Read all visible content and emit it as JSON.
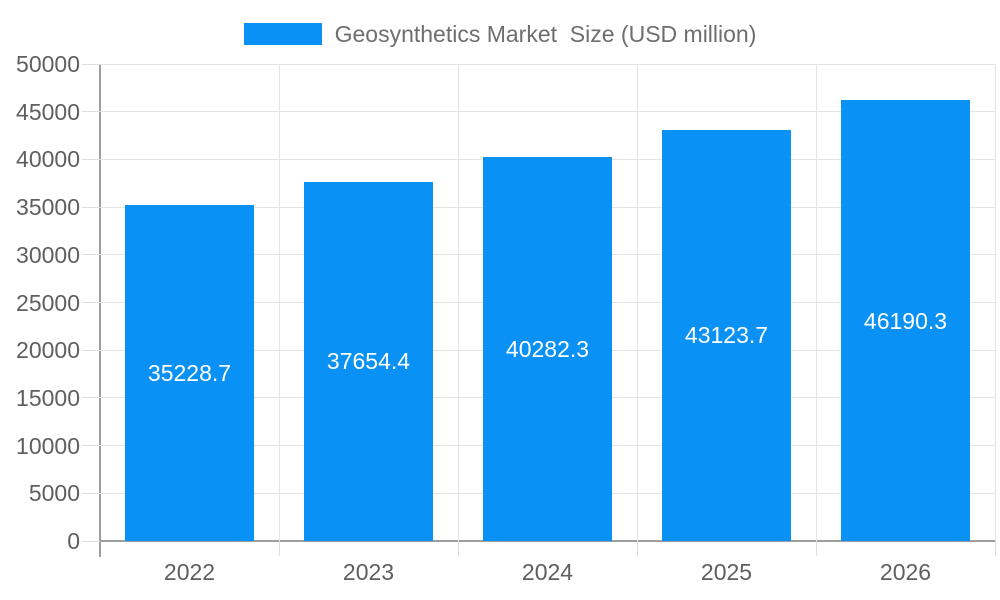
{
  "legend": {
    "label": "Geosynthetics Market  Size (USD million)"
  },
  "chart_data": {
    "type": "bar",
    "title": "Geosynthetics Market  Size (USD million)",
    "categories": [
      "2022",
      "2023",
      "2024",
      "2025",
      "2026"
    ],
    "values": [
      35228.7,
      37654.4,
      40282.3,
      43123.7,
      46190.3
    ],
    "value_labels": [
      "35228.7",
      "37654.4",
      "40282.3",
      "43123.7",
      "46190.3"
    ],
    "xlabel": "",
    "ylabel": "",
    "ylim": [
      0,
      50000
    ],
    "ytick_step": 5000,
    "yticks": [
      "0",
      "5000",
      "10000",
      "15000",
      "20000",
      "25000",
      "30000",
      "35000",
      "40000",
      "45000",
      "50000"
    ],
    "grid": true,
    "legend_position": "top-center",
    "value_label_position": "center-of-bar",
    "colors": {
      "bar": "#0991f5",
      "grid": "#e4e4e4",
      "axis": "#9e9e9e",
      "tick": "#dedede",
      "axis_label": "#5f5f5f",
      "legend_text": "#6e6e6e",
      "value_label": "#ffffff",
      "background": "#ffffff"
    }
  }
}
